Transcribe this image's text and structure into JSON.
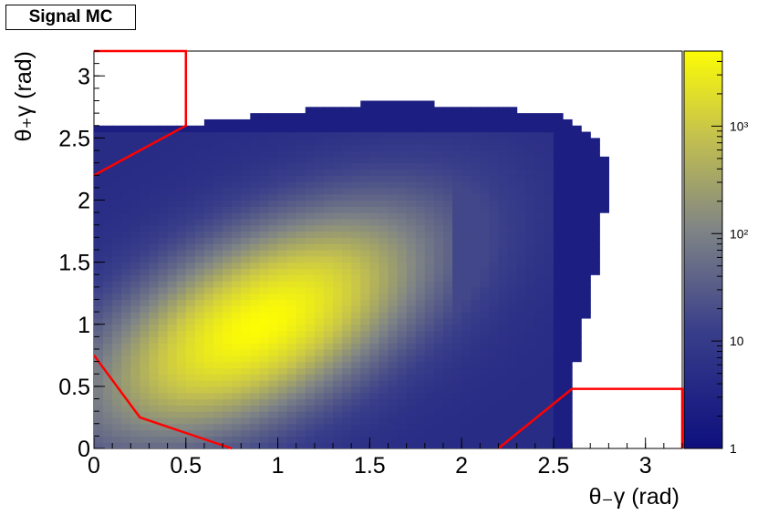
{
  "title": "Signal MC",
  "chart_data": {
    "type": "heatmap",
    "xlabel": "θ₋γ (rad)",
    "ylabel": "θ₊γ (rad)",
    "xlim": [
      0,
      3.2
    ],
    "ylim": [
      0,
      3.2
    ],
    "xticks": [
      "0",
      "0.5",
      "1",
      "1.5",
      "2",
      "2.5",
      "3"
    ],
    "yticks": [
      "0",
      "0.5",
      "1",
      "1.5",
      "2",
      "2.5",
      "3"
    ],
    "zscale": "log",
    "zlim": [
      1,
      5000
    ],
    "zticks": [
      "1",
      "10",
      "10²",
      "10³"
    ],
    "palette": [
      "#0e0f7e",
      "#3a3f8a",
      "#7f8486",
      "#c8c54a",
      "#fcfc05"
    ],
    "peak": {
      "x": 0.9,
      "y": 1.0
    },
    "populated_region": [
      [
        0,
        0
      ],
      [
        2.6,
        0
      ],
      [
        2.6,
        0.55
      ],
      [
        2.75,
        1.6
      ],
      [
        2.8,
        2.2
      ],
      [
        2.75,
        2.5
      ],
      [
        2.5,
        2.7
      ],
      [
        1.6,
        2.8
      ],
      [
        1.0,
        2.7
      ],
      [
        0.5,
        2.6
      ],
      [
        0,
        2.6
      ]
    ],
    "annotations": {
      "cut_regions": [
        {
          "name": "upper-left-cut",
          "points": [
            [
              0,
              3.2
            ],
            [
              0.5,
              3.2
            ],
            [
              0.5,
              2.6
            ],
            [
              0,
              2.2
            ]
          ]
        },
        {
          "name": "lower-left-cut",
          "points": [
            [
              0,
              0.75
            ],
            [
              0.25,
              0.25
            ],
            [
              0.75,
              0
            ]
          ]
        },
        {
          "name": "lower-right-cut",
          "points": [
            [
              2.2,
              0
            ],
            [
              2.6,
              0.48
            ],
            [
              3.2,
              0.48
            ],
            [
              3.2,
              0
            ]
          ]
        }
      ],
      "cut_color": "#ff0000"
    }
  }
}
